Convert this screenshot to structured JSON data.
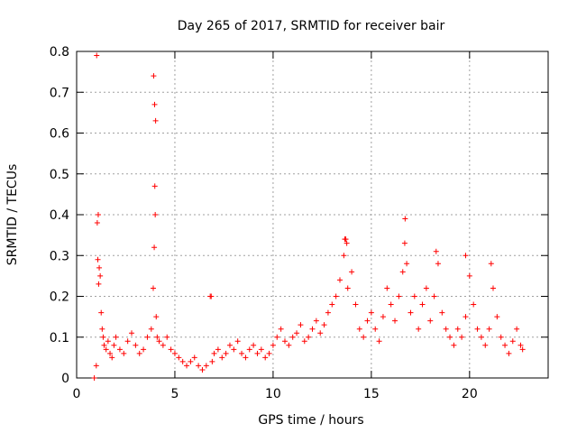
{
  "chart_data": {
    "type": "scatter",
    "title": "Day 265 of 2017, SRMTID for receiver bair",
    "xlabel": "GPS time / hours",
    "ylabel": "SRMTID / TECUs",
    "xlim": [
      0,
      24
    ],
    "ylim": [
      0,
      0.8
    ],
    "grid": true,
    "marker": "plus",
    "color": "#ff0000",
    "x_ticks": [
      0,
      5,
      10,
      15,
      20
    ],
    "x_tick_labels": [
      "0",
      "5",
      "10",
      "15",
      "20"
    ],
    "y_ticks": [
      0,
      0.1,
      0.2,
      0.3,
      0.4,
      0.5,
      0.6,
      0.7,
      0.8
    ],
    "y_tick_labels": [
      "0",
      "0.1",
      "0.2",
      "0.3",
      "0.4",
      "0.5",
      "0.6",
      "0.7",
      "0.8"
    ],
    "series": [
      {
        "name": "SRMTID",
        "x": [
          0.9,
          1.0,
          1.05,
          1.1,
          1.15,
          1.2,
          1.25,
          1.3,
          1.35,
          1.4,
          1.5,
          1.6,
          1.7,
          1.8,
          1.9,
          2.0,
          2.2,
          2.4,
          2.6,
          2.8,
          3.0,
          3.2,
          3.4,
          3.6,
          3.8,
          3.9,
          3.95,
          4.0,
          4.05,
          4.1,
          4.2,
          4.4,
          4.6,
          4.8,
          5.0,
          5.2,
          5.4,
          5.6,
          5.8,
          6.0,
          6.2,
          6.4,
          6.6,
          6.8,
          6.9,
          7.0,
          7.2,
          7.4,
          7.6,
          7.8,
          8.0,
          8.2,
          8.4,
          8.6,
          8.8,
          9.0,
          9.2,
          9.4,
          9.6,
          9.8,
          10.0,
          10.2,
          10.4,
          10.6,
          10.8,
          11.0,
          11.2,
          11.4,
          11.6,
          11.8,
          12.0,
          12.2,
          12.4,
          12.6,
          12.8,
          13.0,
          13.2,
          13.4,
          13.6,
          13.7,
          13.8,
          14.0,
          14.2,
          14.4,
          14.6,
          14.8,
          15.0,
          15.2,
          15.4,
          15.6,
          15.8,
          16.0,
          16.2,
          16.4,
          16.6,
          16.7,
          16.8,
          17.0,
          17.2,
          17.4,
          17.6,
          17.8,
          18.0,
          18.2,
          18.4,
          18.6,
          18.8,
          19.0,
          19.2,
          19.4,
          19.6,
          19.8,
          20.0,
          20.2,
          20.4,
          20.6,
          20.8,
          21.0,
          21.2,
          21.4,
          21.6,
          21.8,
          22.0,
          22.2,
          22.4,
          22.6,
          22.7,
          1.02,
          1.08,
          1.12,
          3.92,
          3.97,
          4.02,
          3.98,
          13.65,
          13.75,
          16.72,
          18.3,
          19.8,
          21.1,
          6.85
        ],
        "y": [
          0.0,
          0.03,
          0.38,
          0.4,
          0.27,
          0.25,
          0.16,
          0.12,
          0.1,
          0.08,
          0.07,
          0.09,
          0.06,
          0.05,
          0.08,
          0.1,
          0.07,
          0.06,
          0.09,
          0.11,
          0.08,
          0.06,
          0.07,
          0.1,
          0.12,
          0.22,
          0.32,
          0.4,
          0.15,
          0.1,
          0.09,
          0.08,
          0.1,
          0.07,
          0.06,
          0.05,
          0.04,
          0.03,
          0.04,
          0.05,
          0.03,
          0.02,
          0.03,
          0.2,
          0.04,
          0.06,
          0.07,
          0.05,
          0.06,
          0.08,
          0.07,
          0.09,
          0.06,
          0.05,
          0.07,
          0.08,
          0.06,
          0.07,
          0.05,
          0.06,
          0.08,
          0.1,
          0.12,
          0.09,
          0.08,
          0.1,
          0.11,
          0.13,
          0.09,
          0.1,
          0.12,
          0.14,
          0.11,
          0.13,
          0.16,
          0.18,
          0.2,
          0.24,
          0.3,
          0.34,
          0.22,
          0.26,
          0.18,
          0.12,
          0.1,
          0.14,
          0.16,
          0.12,
          0.09,
          0.15,
          0.22,
          0.18,
          0.14,
          0.2,
          0.26,
          0.33,
          0.28,
          0.16,
          0.2,
          0.12,
          0.18,
          0.22,
          0.14,
          0.2,
          0.28,
          0.16,
          0.12,
          0.1,
          0.08,
          0.12,
          0.1,
          0.15,
          0.25,
          0.18,
          0.12,
          0.1,
          0.08,
          0.12,
          0.22,
          0.15,
          0.1,
          0.08,
          0.06,
          0.09,
          0.12,
          0.08,
          0.07,
          0.79,
          0.29,
          0.23,
          0.74,
          0.67,
          0.63,
          0.47,
          0.34,
          0.33,
          0.39,
          0.31,
          0.3,
          0.28,
          0.2
        ]
      }
    ]
  }
}
